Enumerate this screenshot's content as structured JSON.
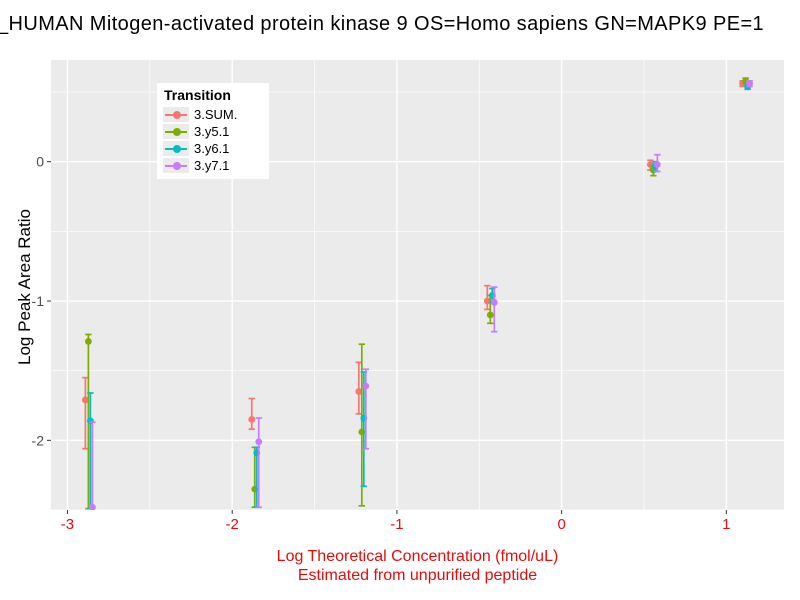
{
  "title": "_HUMAN Mitogen-activated protein kinase 9 OS=Homo sapiens GN=MAPK9 PE=1",
  "chart_data": {
    "type": "scatter",
    "title": "_HUMAN Mitogen-activated protein kinase 9 OS=Homo sapiens GN=MAPK9 PE=1",
    "ylabel": "Log Peak Area Ratio",
    "xlabel_line1": "Log Theoretical Concentration (fmol/uL)",
    "xlabel_line2": "Estimated from unpurified peptide",
    "legend_title": "Transition",
    "legend_position": "top-left-inside",
    "grid": true,
    "xlim": [
      -3.1,
      1.35
    ],
    "ylim": [
      -2.5,
      0.73
    ],
    "x_ticks": [
      -3,
      -2,
      -1,
      0,
      1
    ],
    "y_ticks": [
      0,
      -1,
      -2
    ],
    "x_minor_ticks": [
      -2.5,
      -1.5,
      -0.5,
      0.5
    ],
    "y_minor_ticks": [
      0.5,
      -0.5,
      -1.5,
      -2.5
    ],
    "x_categories": [
      -2.87,
      -1.86,
      -1.21,
      -0.43,
      0.56,
      1.12
    ],
    "series": [
      {
        "name": "3.SUM.",
        "color": "#F8766D",
        "points": [
          {
            "x": -2.87,
            "y": -1.71,
            "lo": -2.06,
            "hi": -1.55
          },
          {
            "x": -1.86,
            "y": -1.85,
            "lo": -1.92,
            "hi": -1.7
          },
          {
            "x": -1.21,
            "y": -1.65,
            "lo": -1.81,
            "hi": -1.44
          },
          {
            "x": -0.43,
            "y": -1.0,
            "lo": -1.06,
            "hi": -0.89
          },
          {
            "x": 0.56,
            "y": -0.02,
            "lo": -0.06,
            "hi": 0.01
          },
          {
            "x": 1.12,
            "y": 0.56,
            "lo": 0.54,
            "hi": 0.58
          }
        ]
      },
      {
        "name": "3.y5.1",
        "color": "#7CAE00",
        "points": [
          {
            "x": -2.87,
            "y": -1.29,
            "lo": -2.49,
            "hi": -1.24
          },
          {
            "x": -1.86,
            "y": -2.35,
            "lo": -2.48,
            "hi": -2.05
          },
          {
            "x": -1.21,
            "y": -1.94,
            "lo": -2.47,
            "hi": -1.31
          },
          {
            "x": -0.43,
            "y": -1.1,
            "lo": -1.16,
            "hi": -0.96
          },
          {
            "x": 0.56,
            "y": -0.06,
            "lo": -0.1,
            "hi": -0.03
          },
          {
            "x": 1.12,
            "y": 0.58,
            "lo": 0.56,
            "hi": 0.6
          }
        ]
      },
      {
        "name": "3.y6.1",
        "color": "#00BFC4",
        "points": [
          {
            "x": -2.87,
            "y": -1.86,
            "lo": -2.49,
            "hi": -1.66
          },
          {
            "x": -1.86,
            "y": -2.09,
            "lo": -2.48,
            "hi": -2.05
          },
          {
            "x": -1.21,
            "y": -1.84,
            "lo": -2.33,
            "hi": -1.51
          },
          {
            "x": -0.43,
            "y": -0.96,
            "lo": -1.01,
            "hi": -0.91
          },
          {
            "x": 0.56,
            "y": -0.03,
            "lo": -0.07,
            "hi": 0.0
          },
          {
            "x": 1.12,
            "y": 0.54,
            "lo": 0.52,
            "hi": 0.56
          }
        ]
      },
      {
        "name": "3.y7.1",
        "color": "#C77CFF",
        "points": [
          {
            "x": -2.87,
            "y": -2.48,
            "lo": -2.6,
            "hi": -1.87
          },
          {
            "x": -1.86,
            "y": -2.01,
            "lo": -2.48,
            "hi": -1.84
          },
          {
            "x": -1.21,
            "y": -1.61,
            "lo": -2.06,
            "hi": -1.49
          },
          {
            "x": -0.43,
            "y": -1.01,
            "lo": -1.22,
            "hi": -0.9
          },
          {
            "x": 0.56,
            "y": -0.02,
            "lo": -0.07,
            "hi": 0.05
          },
          {
            "x": 1.12,
            "y": 0.56,
            "lo": 0.54,
            "hi": 0.58
          }
        ]
      }
    ],
    "colors": {
      "panel_background": "#EBEBEB",
      "grid": "#FFFFFF",
      "x_tick_label": "#e10e0e",
      "x_axis_title": "#e10e0e",
      "y_tick_label": "#4d4d4d",
      "tick_mark": "#333333",
      "title_text": "#000000"
    }
  }
}
